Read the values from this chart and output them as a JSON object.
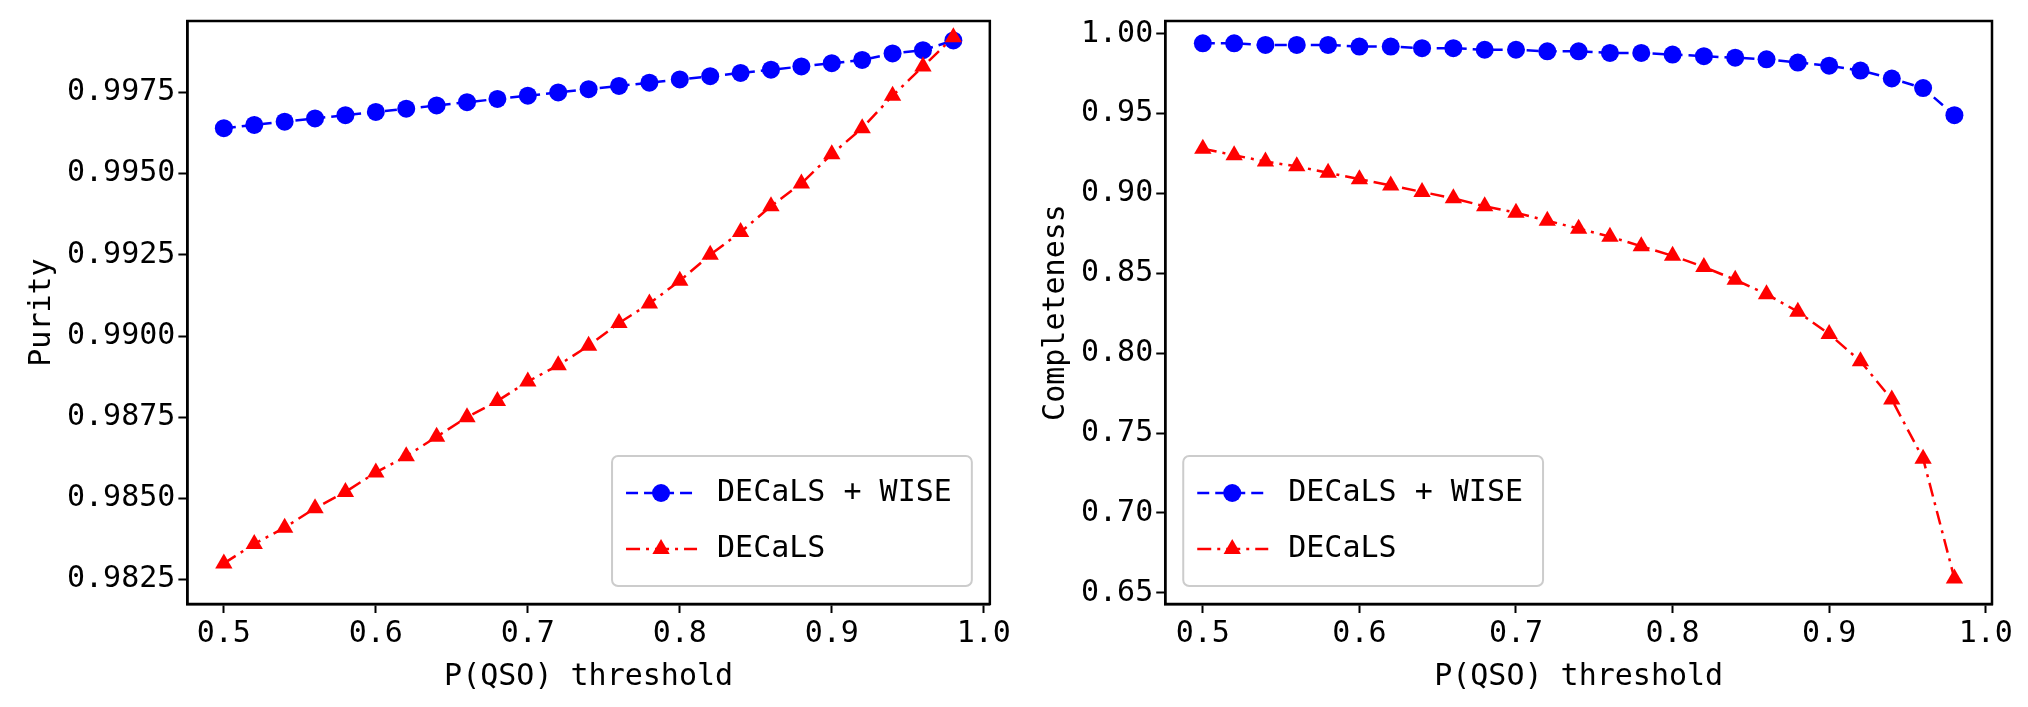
{
  "chart_data": [
    {
      "type": "line",
      "xlabel": "P(QSO) threshold",
      "ylabel": "Purity",
      "x": [
        0.5,
        0.52,
        0.54,
        0.56,
        0.58,
        0.6,
        0.62,
        0.64,
        0.66,
        0.68,
        0.7,
        0.72,
        0.74,
        0.76,
        0.78,
        0.8,
        0.82,
        0.84,
        0.86,
        0.88,
        0.9,
        0.92,
        0.94,
        0.96,
        0.98
      ],
      "series": [
        {
          "name": "DECaLS + WISE",
          "color": "#0000ff",
          "marker": "circle",
          "line_style": "dashed",
          "values": [
            0.9964,
            0.9965,
            0.9966,
            0.9967,
            0.9968,
            0.9969,
            0.997,
            0.9971,
            0.9972,
            0.9973,
            0.9974,
            0.9975,
            0.9976,
            0.9977,
            0.9978,
            0.9979,
            0.998,
            0.9981,
            0.9982,
            0.9983,
            0.9984,
            0.9985,
            0.9987,
            0.9988,
            0.9991
          ]
        },
        {
          "name": "DECaLS",
          "color": "#ff0000",
          "marker": "triangle",
          "line_style": "dashdot",
          "values": [
            0.983,
            0.9836,
            0.9841,
            0.9847,
            0.9852,
            0.9858,
            0.9863,
            0.9869,
            0.9875,
            0.988,
            0.9886,
            0.9891,
            0.9897,
            0.9904,
            0.991,
            0.9917,
            0.9925,
            0.9932,
            0.994,
            0.9947,
            0.9956,
            0.9964,
            0.9974,
            0.9983,
            0.9992
          ]
        }
      ],
      "xlim": [
        0.476,
        1.004
      ],
      "xticks": [
        0.5,
        0.6,
        0.7,
        0.8,
        0.9,
        {
          "value": 1.0,
          "label": "1.0"
        }
      ],
      "ylim": [
        0.98175,
        0.9997
      ],
      "yticks": [
        0.9825,
        {
          "value": 0.985,
          "label": "0.9850"
        },
        0.9875,
        {
          "value": 0.99,
          "label": "0.9900"
        },
        0.9925,
        {
          "value": 0.995,
          "label": "0.9950"
        },
        0.9975
      ],
      "legend": "bottom right",
      "grid": false
    },
    {
      "type": "line",
      "xlabel": "P(QSO) threshold",
      "ylabel": "Completeness",
      "x": [
        0.5,
        0.52,
        0.54,
        0.56,
        0.58,
        0.6,
        0.62,
        0.64,
        0.66,
        0.68,
        0.7,
        0.72,
        0.74,
        0.76,
        0.78,
        0.8,
        0.82,
        0.84,
        0.86,
        0.88,
        0.9,
        0.92,
        0.94,
        0.96,
        0.98
      ],
      "series": [
        {
          "name": "DECaLS + WISE",
          "color": "#0000ff",
          "marker": "circle",
          "line_style": "dashed",
          "values": [
            0.994,
            0.994,
            0.993,
            0.993,
            0.993,
            0.992,
            0.992,
            0.991,
            0.991,
            0.99,
            0.99,
            0.989,
            0.989,
            0.988,
            0.988,
            0.987,
            0.986,
            0.985,
            0.984,
            0.982,
            0.98,
            0.977,
            0.972,
            0.966,
            0.949
          ]
        },
        {
          "name": "DECaLS",
          "color": "#ff0000",
          "marker": "triangle",
          "line_style": "dashdot",
          "values": [
            0.928,
            0.924,
            0.92,
            0.917,
            0.913,
            0.909,
            0.905,
            0.901,
            0.897,
            0.892,
            0.888,
            0.883,
            0.878,
            0.873,
            0.867,
            0.861,
            0.854,
            0.846,
            0.837,
            0.826,
            0.812,
            0.795,
            0.771,
            0.734,
            0.659
          ]
        }
      ],
      "xlim": [
        0.476,
        1.004
      ],
      "xticks": [
        0.5,
        0.6,
        0.7,
        0.8,
        0.9,
        {
          "value": 1.0,
          "label": "1.0"
        }
      ],
      "ylim": [
        0.643,
        1.008
      ],
      "yticks": [
        0.65,
        {
          "value": 0.7,
          "label": "0.70"
        },
        0.75,
        {
          "value": 0.8,
          "label": "0.80"
        },
        0.85,
        {
          "value": 0.9,
          "label": "0.90"
        },
        0.95,
        {
          "value": 1.0,
          "label": "1.00"
        }
      ],
      "legend": "bottom left",
      "grid": false
    }
  ]
}
